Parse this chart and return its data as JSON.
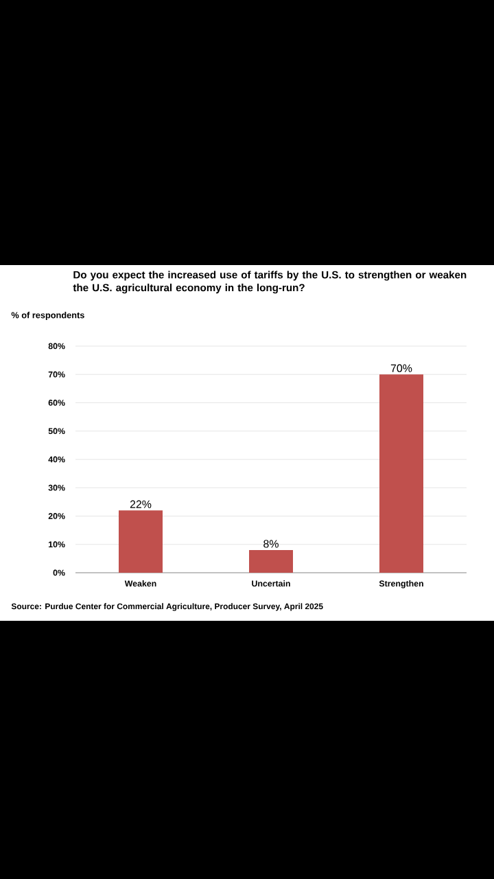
{
  "chart_data": {
    "type": "bar",
    "title": "Do you expect the increased use of tariffs by the U.S. to strengthen or weaken the U.S. agricultural economy in the long-run?",
    "ylabel": "% of respondents",
    "categories": [
      "Weaken",
      "Uncertain",
      "Strengthen"
    ],
    "values": [
      22,
      8,
      70
    ],
    "value_labels": [
      "22%",
      "8%",
      "70%"
    ],
    "color": "#c0504d",
    "ylim": [
      0,
      80
    ],
    "yticks": [
      {
        "value": 0,
        "label": "0%"
      },
      {
        "value": 10,
        "label": "10%"
      },
      {
        "value": 20,
        "label": "20%"
      },
      {
        "value": 30,
        "label": "30%"
      },
      {
        "value": 40,
        "label": "40%"
      },
      {
        "value": 50,
        "label": "50%"
      },
      {
        "value": 60,
        "label": "60%"
      },
      {
        "value": 70,
        "label": "70%"
      },
      {
        "value": 80,
        "label": "80%"
      }
    ],
    "grid": "y",
    "annotations": [
      "Source: Purdue Center for Commercial Agriculture, Producer Survey, April 2025"
    ]
  }
}
